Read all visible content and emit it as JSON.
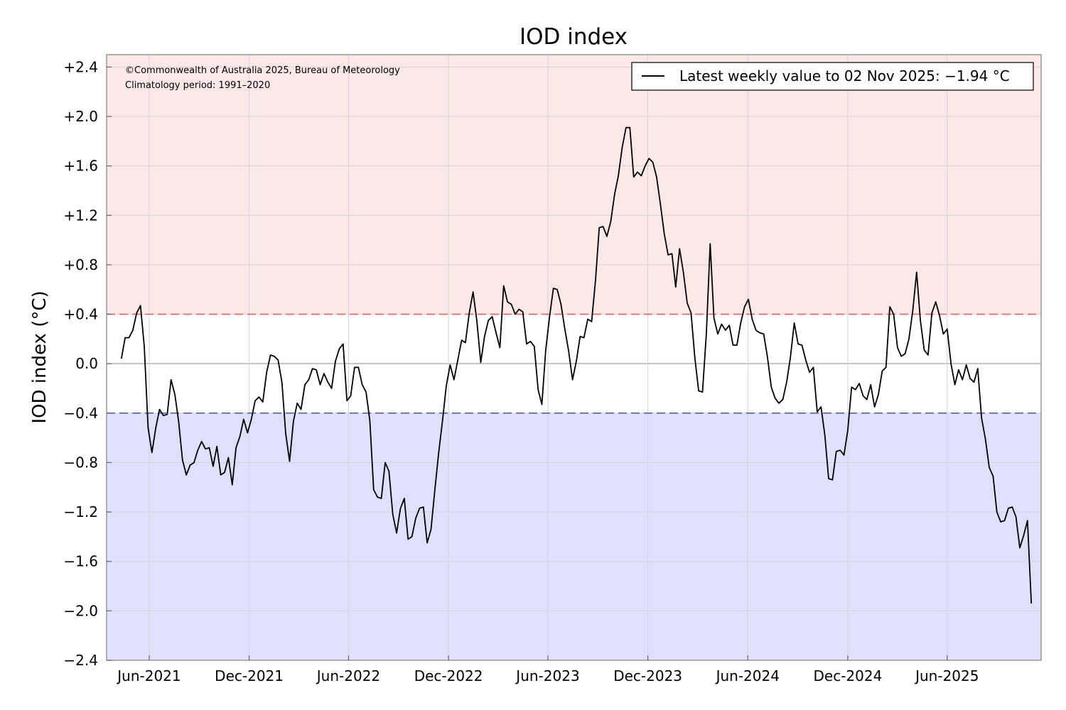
{
  "chart_data": {
    "type": "line",
    "title": "IOD index",
    "ylabel": "IOD index (°C)",
    "xlabel": "",
    "ylim": [
      -2.4,
      2.5
    ],
    "xlim": [
      "2021-03-15",
      "2025-11-20"
    ],
    "grid": true,
    "yticks": [
      2.4,
      2.0,
      1.6,
      1.2,
      0.8,
      0.4,
      0.0,
      -0.4,
      -0.8,
      -1.2,
      -1.6,
      -2.0,
      -2.4
    ],
    "ytick_labels": [
      "+2.4",
      "+2.0",
      "+1.6",
      "+1.2",
      "+0.8",
      "+0.4",
      "0.0",
      "−0.4",
      "−0.8",
      "−1.2",
      "−1.6",
      "−2.0",
      "−2.4"
    ],
    "xticks": [
      {
        "date": "2021-06-01",
        "label": "Jun-2021"
      },
      {
        "date": "2021-12-01",
        "label": "Dec-2021"
      },
      {
        "date": "2022-06-01",
        "label": "Jun-2022"
      },
      {
        "date": "2022-12-01",
        "label": "Dec-2022"
      },
      {
        "date": "2023-06-01",
        "label": "Jun-2023"
      },
      {
        "date": "2023-12-01",
        "label": "Dec-2023"
      },
      {
        "date": "2024-06-01",
        "label": "Jun-2024"
      },
      {
        "date": "2024-12-01",
        "label": "Dec-2024"
      },
      {
        "date": "2025-06-01",
        "label": "Jun-2025"
      }
    ],
    "thresholds": [
      {
        "value": 0.4,
        "color": "#e06666",
        "region": "above",
        "fill": "#fde8e8"
      },
      {
        "value": -0.4,
        "color": "#5b5fa8",
        "region": "below",
        "fill": "#e0e0fd"
      }
    ],
    "annotations": [
      "©Commonwealth of Australia 2025, Bureau of Meteorology",
      "Climatology period: 1991–2020"
    ],
    "legend": {
      "position": "top-right",
      "label": "Latest weekly value to 02 Nov 2025: −1.94 °C"
    },
    "series": [
      {
        "name": "Latest weekly value to 02 Nov 2025: −1.94 °C",
        "color": "#000000",
        "points": [
          [
            "2021-04-11",
            0.04
          ],
          [
            "2021-04-18",
            0.21
          ],
          [
            "2021-04-25",
            0.21
          ],
          [
            "2021-05-02",
            0.27
          ],
          [
            "2021-05-09",
            0.41
          ],
          [
            "2021-05-16",
            0.47
          ],
          [
            "2021-05-23",
            0.14
          ],
          [
            "2021-05-30",
            -0.52
          ],
          [
            "2021-06-06",
            -0.72
          ],
          [
            "2021-06-13",
            -0.52
          ],
          [
            "2021-06-20",
            -0.37
          ],
          [
            "2021-06-27",
            -0.42
          ],
          [
            "2021-07-04",
            -0.41
          ],
          [
            "2021-07-11",
            -0.13
          ],
          [
            "2021-07-18",
            -0.25
          ],
          [
            "2021-07-25",
            -0.47
          ],
          [
            "2021-08-01",
            -0.78
          ],
          [
            "2021-08-08",
            -0.9
          ],
          [
            "2021-08-15",
            -0.82
          ],
          [
            "2021-08-22",
            -0.8
          ],
          [
            "2021-08-29",
            -0.7
          ],
          [
            "2021-09-05",
            -0.63
          ],
          [
            "2021-09-12",
            -0.69
          ],
          [
            "2021-09-19",
            -0.68
          ],
          [
            "2021-09-26",
            -0.83
          ],
          [
            "2021-10-03",
            -0.67
          ],
          [
            "2021-10-10",
            -0.9
          ],
          [
            "2021-10-17",
            -0.88
          ],
          [
            "2021-10-24",
            -0.76
          ],
          [
            "2021-10-31",
            -0.98
          ],
          [
            "2021-11-07",
            -0.68
          ],
          [
            "2021-11-14",
            -0.59
          ],
          [
            "2021-11-21",
            -0.45
          ],
          [
            "2021-11-28",
            -0.56
          ],
          [
            "2021-12-05",
            -0.45
          ],
          [
            "2021-12-12",
            -0.3
          ],
          [
            "2021-12-19",
            -0.27
          ],
          [
            "2021-12-26",
            -0.31
          ],
          [
            "2022-01-02",
            -0.07
          ],
          [
            "2022-01-09",
            0.07
          ],
          [
            "2022-01-16",
            0.06
          ],
          [
            "2022-01-23",
            0.03
          ],
          [
            "2022-01-30",
            -0.15
          ],
          [
            "2022-02-06",
            -0.57
          ],
          [
            "2022-02-13",
            -0.79
          ],
          [
            "2022-02-20",
            -0.47
          ],
          [
            "2022-02-27",
            -0.32
          ],
          [
            "2022-03-06",
            -0.37
          ],
          [
            "2022-03-13",
            -0.17
          ],
          [
            "2022-03-20",
            -0.13
          ],
          [
            "2022-03-27",
            -0.04
          ],
          [
            "2022-04-03",
            -0.05
          ],
          [
            "2022-04-10",
            -0.17
          ],
          [
            "2022-04-17",
            -0.08
          ],
          [
            "2022-04-24",
            -0.15
          ],
          [
            "2022-05-01",
            -0.2
          ],
          [
            "2022-05-08",
            0.02
          ],
          [
            "2022-05-15",
            0.12
          ],
          [
            "2022-05-22",
            0.16
          ],
          [
            "2022-05-29",
            -0.3
          ],
          [
            "2022-06-05",
            -0.26
          ],
          [
            "2022-06-12",
            -0.03
          ],
          [
            "2022-06-19",
            -0.03
          ],
          [
            "2022-06-26",
            -0.17
          ],
          [
            "2022-07-03",
            -0.23
          ],
          [
            "2022-07-10",
            -0.46
          ],
          [
            "2022-07-17",
            -1.02
          ],
          [
            "2022-07-24",
            -1.08
          ],
          [
            "2022-07-31",
            -1.09
          ],
          [
            "2022-08-07",
            -0.8
          ],
          [
            "2022-08-14",
            -0.87
          ],
          [
            "2022-08-21",
            -1.22
          ],
          [
            "2022-08-28",
            -1.37
          ],
          [
            "2022-09-04",
            -1.17
          ],
          [
            "2022-09-11",
            -1.09
          ],
          [
            "2022-09-18",
            -1.42
          ],
          [
            "2022-09-25",
            -1.4
          ],
          [
            "2022-10-02",
            -1.25
          ],
          [
            "2022-10-09",
            -1.17
          ],
          [
            "2022-10-16",
            -1.16
          ],
          [
            "2022-10-23",
            -1.45
          ],
          [
            "2022-10-30",
            -1.34
          ],
          [
            "2022-11-06",
            -1.02
          ],
          [
            "2022-11-13",
            -0.72
          ],
          [
            "2022-11-20",
            -0.46
          ],
          [
            "2022-11-27",
            -0.18
          ],
          [
            "2022-12-04",
            -0.01
          ],
          [
            "2022-12-11",
            -0.13
          ],
          [
            "2022-12-18",
            0.03
          ],
          [
            "2022-12-25",
            0.19
          ],
          [
            "2023-01-01",
            0.17
          ],
          [
            "2023-01-08",
            0.41
          ],
          [
            "2023-01-15",
            0.58
          ],
          [
            "2023-01-22",
            0.34
          ],
          [
            "2023-01-29",
            0.01
          ],
          [
            "2023-02-05",
            0.22
          ],
          [
            "2023-02-12",
            0.35
          ],
          [
            "2023-02-19",
            0.38
          ],
          [
            "2023-02-26",
            0.25
          ],
          [
            "2023-03-05",
            0.13
          ],
          [
            "2023-03-12",
            0.63
          ],
          [
            "2023-03-19",
            0.5
          ],
          [
            "2023-03-26",
            0.48
          ],
          [
            "2023-04-02",
            0.4
          ],
          [
            "2023-04-09",
            0.44
          ],
          [
            "2023-04-16",
            0.42
          ],
          [
            "2023-04-23",
            0.16
          ],
          [
            "2023-04-30",
            0.18
          ],
          [
            "2023-05-07",
            0.14
          ],
          [
            "2023-05-14",
            -0.21
          ],
          [
            "2023-05-21",
            -0.33
          ],
          [
            "2023-05-28",
            0.11
          ],
          [
            "2023-06-04",
            0.38
          ],
          [
            "2023-06-11",
            0.61
          ],
          [
            "2023-06-18",
            0.6
          ],
          [
            "2023-06-25",
            0.48
          ],
          [
            "2023-07-02",
            0.28
          ],
          [
            "2023-07-09",
            0.1
          ],
          [
            "2023-07-16",
            -0.13
          ],
          [
            "2023-07-23",
            0.02
          ],
          [
            "2023-07-30",
            0.22
          ],
          [
            "2023-08-06",
            0.21
          ],
          [
            "2023-08-13",
            0.36
          ],
          [
            "2023-08-20",
            0.34
          ],
          [
            "2023-08-27",
            0.67
          ],
          [
            "2023-09-03",
            1.1
          ],
          [
            "2023-09-10",
            1.11
          ],
          [
            "2023-09-17",
            1.03
          ],
          [
            "2023-09-24",
            1.15
          ],
          [
            "2023-10-01",
            1.37
          ],
          [
            "2023-10-08",
            1.52
          ],
          [
            "2023-10-15",
            1.75
          ],
          [
            "2023-10-22",
            1.91
          ],
          [
            "2023-10-29",
            1.91
          ],
          [
            "2023-11-05",
            1.51
          ],
          [
            "2023-11-12",
            1.55
          ],
          [
            "2023-11-19",
            1.52
          ],
          [
            "2023-11-26",
            1.6
          ],
          [
            "2023-12-03",
            1.66
          ],
          [
            "2023-12-10",
            1.63
          ],
          [
            "2023-12-17",
            1.51
          ],
          [
            "2023-12-24",
            1.29
          ],
          [
            "2023-12-31",
            1.05
          ],
          [
            "2024-01-07",
            0.88
          ],
          [
            "2024-01-14",
            0.89
          ],
          [
            "2024-01-21",
            0.62
          ],
          [
            "2024-01-28",
            0.93
          ],
          [
            "2024-02-04",
            0.74
          ],
          [
            "2024-02-11",
            0.49
          ],
          [
            "2024-02-18",
            0.41
          ],
          [
            "2024-02-25",
            0.05
          ],
          [
            "2024-03-03",
            -0.22
          ],
          [
            "2024-03-10",
            -0.23
          ],
          [
            "2024-03-17",
            0.24
          ],
          [
            "2024-03-24",
            0.97
          ],
          [
            "2024-03-31",
            0.37
          ],
          [
            "2024-04-07",
            0.24
          ],
          [
            "2024-04-14",
            0.32
          ],
          [
            "2024-04-21",
            0.27
          ],
          [
            "2024-04-28",
            0.31
          ],
          [
            "2024-05-05",
            0.15
          ],
          [
            "2024-05-12",
            0.15
          ],
          [
            "2024-05-19",
            0.33
          ],
          [
            "2024-05-26",
            0.46
          ],
          [
            "2024-06-02",
            0.52
          ],
          [
            "2024-06-09",
            0.36
          ],
          [
            "2024-06-16",
            0.27
          ],
          [
            "2024-06-23",
            0.25
          ],
          [
            "2024-06-30",
            0.24
          ],
          [
            "2024-07-07",
            0.05
          ],
          [
            "2024-07-14",
            -0.19
          ],
          [
            "2024-07-21",
            -0.28
          ],
          [
            "2024-07-28",
            -0.32
          ],
          [
            "2024-08-04",
            -0.29
          ],
          [
            "2024-08-11",
            -0.15
          ],
          [
            "2024-08-18",
            0.05
          ],
          [
            "2024-08-25",
            0.33
          ],
          [
            "2024-09-01",
            0.16
          ],
          [
            "2024-09-08",
            0.15
          ],
          [
            "2024-09-15",
            0.03
          ],
          [
            "2024-09-22",
            -0.07
          ],
          [
            "2024-09-29",
            -0.03
          ],
          [
            "2024-10-06",
            -0.39
          ],
          [
            "2024-10-13",
            -0.35
          ],
          [
            "2024-10-20",
            -0.58
          ],
          [
            "2024-10-27",
            -0.93
          ],
          [
            "2024-11-03",
            -0.94
          ],
          [
            "2024-11-10",
            -0.71
          ],
          [
            "2024-11-17",
            -0.7
          ],
          [
            "2024-11-24",
            -0.74
          ],
          [
            "2024-12-01",
            -0.54
          ],
          [
            "2024-12-08",
            -0.19
          ],
          [
            "2024-12-15",
            -0.21
          ],
          [
            "2024-12-22",
            -0.16
          ],
          [
            "2024-12-29",
            -0.26
          ],
          [
            "2025-01-05",
            -0.29
          ],
          [
            "2025-01-12",
            -0.17
          ],
          [
            "2025-01-19",
            -0.35
          ],
          [
            "2025-01-26",
            -0.25
          ],
          [
            "2025-02-02",
            -0.06
          ],
          [
            "2025-02-09",
            -0.03
          ],
          [
            "2025-02-16",
            0.46
          ],
          [
            "2025-02-23",
            0.4
          ],
          [
            "2025-03-02",
            0.13
          ],
          [
            "2025-03-09",
            0.06
          ],
          [
            "2025-03-16",
            0.08
          ],
          [
            "2025-03-23",
            0.2
          ],
          [
            "2025-03-30",
            0.43
          ],
          [
            "2025-04-06",
            0.74
          ],
          [
            "2025-04-13",
            0.35
          ],
          [
            "2025-04-20",
            0.11
          ],
          [
            "2025-04-27",
            0.07
          ],
          [
            "2025-05-04",
            0.41
          ],
          [
            "2025-05-11",
            0.5
          ],
          [
            "2025-05-18",
            0.39
          ],
          [
            "2025-05-25",
            0.24
          ],
          [
            "2025-06-01",
            0.28
          ],
          [
            "2025-06-08",
            0.0
          ],
          [
            "2025-06-15",
            -0.17
          ],
          [
            "2025-06-22",
            -0.05
          ],
          [
            "2025-06-29",
            -0.13
          ],
          [
            "2025-07-06",
            -0.01
          ],
          [
            "2025-07-13",
            -0.12
          ],
          [
            "2025-07-20",
            -0.15
          ],
          [
            "2025-07-27",
            -0.04
          ],
          [
            "2025-08-03",
            -0.44
          ],
          [
            "2025-08-10",
            -0.61
          ],
          [
            "2025-08-17",
            -0.84
          ],
          [
            "2025-08-24",
            -0.91
          ],
          [
            "2025-08-31",
            -1.2
          ],
          [
            "2025-09-07",
            -1.28
          ],
          [
            "2025-09-14",
            -1.27
          ],
          [
            "2025-09-21",
            -1.17
          ],
          [
            "2025-09-28",
            -1.16
          ],
          [
            "2025-10-05",
            -1.24
          ],
          [
            "2025-10-12",
            -1.49
          ],
          [
            "2025-10-19",
            -1.39
          ],
          [
            "2025-10-26",
            -1.27
          ],
          [
            "2025-11-02",
            -1.94
          ]
        ]
      }
    ]
  }
}
